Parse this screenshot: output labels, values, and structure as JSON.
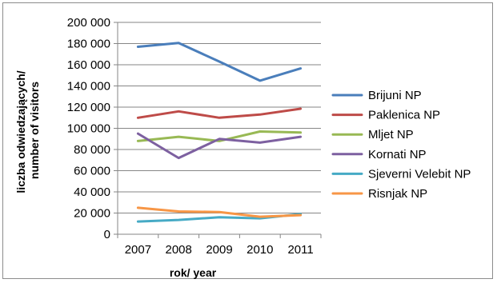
{
  "chart_data": {
    "type": "line",
    "title": "",
    "xlabel": "rok/ year",
    "ylabel_lines": [
      "liczba odwiedzających/",
      "number of visitors"
    ],
    "categories": [
      "2007",
      "2008",
      "2009",
      "2010",
      "2011"
    ],
    "ylim": [
      0,
      200000
    ],
    "ytick_values": [
      0,
      20000,
      40000,
      60000,
      80000,
      100000,
      120000,
      140000,
      160000,
      180000,
      200000
    ],
    "ytick_labels": [
      "0",
      "20 000",
      "40 000",
      "60 000",
      "80 000",
      "100 000",
      "120 000",
      "140 000",
      "160 000",
      "180 000",
      "200 000"
    ],
    "grid": "horizontal-major",
    "legend_position": "right",
    "series": [
      {
        "name": "Brijuni NP",
        "color": "#4a7ebb",
        "values": [
          177000,
          180500,
          163000,
          145000,
          156500
        ]
      },
      {
        "name": "Paklenica NP",
        "color": "#be4b48",
        "values": [
          110000,
          116000,
          110000,
          113000,
          118500
        ]
      },
      {
        "name": "Mljet NP",
        "color": "#98b954",
        "values": [
          88000,
          92000,
          88000,
          97000,
          96000
        ]
      },
      {
        "name": "Kornati NP",
        "color": "#7d60a0",
        "values": [
          95000,
          72000,
          90000,
          86500,
          92000
        ]
      },
      {
        "name": "Sjeverni Velebit NP",
        "color": "#46aac5",
        "values": [
          12000,
          13500,
          16000,
          15000,
          19000
        ]
      },
      {
        "name": "Risnjak NP",
        "color": "#f79646",
        "values": [
          25000,
          21500,
          21000,
          16500,
          18000
        ]
      }
    ]
  }
}
